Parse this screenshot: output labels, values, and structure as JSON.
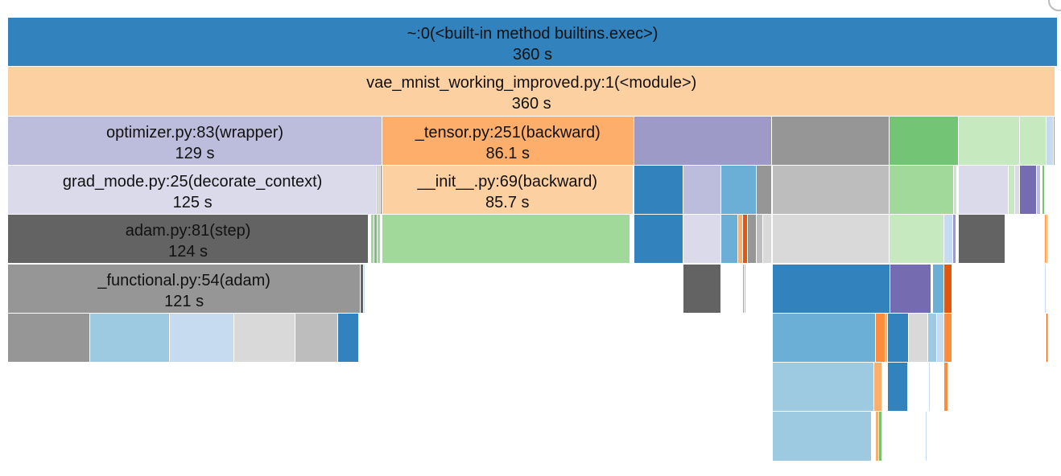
{
  "view": {
    "type": "icicle",
    "root_total_seconds": 360
  },
  "blocks": [
    {
      "name": "root-exec-frame",
      "row": 0,
      "x0": 0,
      "x1": 1,
      "color": "#3182bd",
      "label": "~:0(<built-in method builtins.exec>)",
      "time": "360 s"
    },
    {
      "name": "module-frame",
      "row": 1,
      "x0": 0,
      "x1": 0.998,
      "color": "#fdd0a2",
      "label": "vae_mnist_working_improved.py:1(<module>)",
      "time": "360 s"
    },
    {
      "name": "optimizer-wrapper-frame",
      "row": 2,
      "x0": 0,
      "x1": 0.3566,
      "color": "#bcbddc",
      "label": "optimizer.py:83(wrapper)",
      "time": "129 s"
    },
    {
      "name": "tensor-backward-frame",
      "row": 2,
      "x0": 0.3566,
      "x1": 0.5963,
      "color": "#fdae6b",
      "label": "_tensor.py:251(backward)",
      "time": "86.1 s"
    },
    {
      "name": "frame",
      "row": 2,
      "x0": 0.5963,
      "x1": 0.7279,
      "color": "#9e9ac8"
    },
    {
      "name": "frame",
      "row": 2,
      "x0": 0.7279,
      "x1": 0.8396,
      "color": "#969696"
    },
    {
      "name": "frame",
      "row": 2,
      "x0": 0.8396,
      "x1": 0.9059,
      "color": "#74c476"
    },
    {
      "name": "frame",
      "row": 2,
      "x0": 0.9059,
      "x1": 0.9636,
      "color": "#c7e9c0"
    },
    {
      "name": "frame",
      "row": 2,
      "x0": 0.9636,
      "x1": 0.9893,
      "color": "#c7e9c0"
    },
    {
      "name": "frame",
      "row": 2,
      "x0": 0.9893,
      "x1": 0.9965,
      "color": "#c6dbef"
    },
    {
      "name": "frame",
      "row": 2,
      "x0": 0.9965,
      "x1": 0.998,
      "color": "#6baed6"
    },
    {
      "name": "grad-mode-frame",
      "row": 3,
      "x0": 0,
      "x1": 0.3522,
      "color": "#dadaeb",
      "label": "grad_mode.py:25(decorate_context)",
      "time": "125 s"
    },
    {
      "name": "frame",
      "row": 3,
      "x0": 0.3522,
      "x1": 0.3536,
      "color": "#74c476"
    },
    {
      "name": "frame",
      "row": 3,
      "x0": 0.3536,
      "x1": 0.3551,
      "color": "#a1d99b"
    },
    {
      "name": "frame",
      "row": 3,
      "x0": 0.3551,
      "x1": 0.3566,
      "color": "#31a354"
    },
    {
      "name": "init-backward-frame",
      "row": 3,
      "x0": 0.3566,
      "x1": 0.5955,
      "color": "#fdd0a2",
      "label": "__init__.py:69(backward)",
      "time": "85.7 s"
    },
    {
      "name": "frame",
      "row": 3,
      "x0": 0.5963,
      "x1": 0.6436,
      "color": "#3182bd"
    },
    {
      "name": "frame",
      "row": 3,
      "x0": 0.6436,
      "x1": 0.6795,
      "color": "#bcbddc"
    },
    {
      "name": "frame",
      "row": 3,
      "x0": 0.6795,
      "x1": 0.7131,
      "color": "#6baed6"
    },
    {
      "name": "frame",
      "row": 3,
      "x0": 0.7131,
      "x1": 0.7275,
      "color": "#969696"
    },
    {
      "name": "frame",
      "row": 3,
      "x0": 0.7283,
      "x1": 0.8396,
      "color": "#bdbdbd"
    },
    {
      "name": "frame",
      "row": 3,
      "x0": 0.8396,
      "x1": 0.9013,
      "color": "#a1d99b"
    },
    {
      "name": "frame",
      "row": 3,
      "x0": 0.9013,
      "x1": 0.9044,
      "color": "#c7e9c0"
    },
    {
      "name": "frame",
      "row": 3,
      "x0": 0.9059,
      "x1": 0.9529,
      "color": "#dadaeb"
    },
    {
      "name": "frame",
      "row": 3,
      "x0": 0.9529,
      "x1": 0.959,
      "color": "#c7e9c0"
    },
    {
      "name": "frame",
      "row": 3,
      "x0": 0.959,
      "x1": 0.9636,
      "color": "#dadaeb"
    },
    {
      "name": "frame",
      "row": 3,
      "x0": 0.9636,
      "x1": 0.9803,
      "color": "#756bb1"
    },
    {
      "name": "frame",
      "row": 3,
      "x0": 0.9803,
      "x1": 0.9841,
      "color": "#bcbddc"
    },
    {
      "name": "frame",
      "row": 3,
      "x0": 0.9856,
      "x1": 0.988,
      "color": "#74c476"
    },
    {
      "name": "adam-step-frame",
      "row": 4,
      "x0": 0,
      "x1": 0.3437,
      "color": "#636363",
      "label": "adam.py:81(step)",
      "time": "124 s"
    },
    {
      "name": "frame",
      "row": 4,
      "x0": 0.3437,
      "x1": 0.346,
      "color": "#ffffff"
    },
    {
      "name": "frame",
      "row": 4,
      "x0": 0.346,
      "x1": 0.349,
      "color": "#a1d99b"
    },
    {
      "name": "frame",
      "row": 4,
      "x0": 0.349,
      "x1": 0.3521,
      "color": "#74c476"
    },
    {
      "name": "frame",
      "row": 4,
      "x0": 0.3521,
      "x1": 0.3552,
      "color": "#a1d99b"
    },
    {
      "name": "frame",
      "row": 4,
      "x0": 0.3566,
      "x1": 0.5925,
      "color": "#a1d99b"
    },
    {
      "name": "frame",
      "row": 4,
      "x0": 0.5963,
      "x1": 0.6436,
      "color": "#3182bd"
    },
    {
      "name": "frame",
      "row": 4,
      "x0": 0.6436,
      "x1": 0.6795,
      "color": "#dadaeb"
    },
    {
      "name": "frame",
      "row": 4,
      "x0": 0.6795,
      "x1": 0.6955,
      "color": "#6baed6"
    },
    {
      "name": "frame",
      "row": 4,
      "x0": 0.6955,
      "x1": 0.7001,
      "color": "#fdae6b"
    },
    {
      "name": "frame",
      "row": 4,
      "x0": 0.7001,
      "x1": 0.7047,
      "color": "#e6550d"
    },
    {
      "name": "frame",
      "row": 4,
      "x0": 0.7047,
      "x1": 0.7131,
      "color": "#969696"
    },
    {
      "name": "frame",
      "row": 4,
      "x0": 0.7131,
      "x1": 0.7192,
      "color": "#bdbdbd"
    },
    {
      "name": "frame",
      "row": 4,
      "x0": 0.7192,
      "x1": 0.7275,
      "color": "#d9d9d9"
    },
    {
      "name": "frame",
      "row": 4,
      "x0": 0.7283,
      "x1": 0.8396,
      "color": "#d9d9d9"
    },
    {
      "name": "frame",
      "row": 4,
      "x0": 0.8396,
      "x1": 0.8922,
      "color": "#c7e9c0"
    },
    {
      "name": "frame",
      "row": 4,
      "x0": 0.8922,
      "x1": 0.9006,
      "color": "#c6dbef"
    },
    {
      "name": "frame",
      "row": 4,
      "x0": 0.9006,
      "x1": 0.9036,
      "color": "#9e9ac8"
    },
    {
      "name": "frame",
      "row": 4,
      "x0": 0.9059,
      "x1": 0.9499,
      "color": "#636363"
    },
    {
      "name": "frame",
      "row": 4,
      "x0": 0.9879,
      "x1": 0.9894,
      "color": "#fd8d3c"
    },
    {
      "name": "frame",
      "row": 4,
      "x0": 0.9894,
      "x1": 0.9902,
      "color": "#fdae6b"
    },
    {
      "name": "functional-adam-frame",
      "row": 5,
      "x0": 0,
      "x1": 0.3361,
      "color": "#969696",
      "label": "_functional.py:54(adam)",
      "time": "121 s"
    },
    {
      "name": "frame",
      "row": 5,
      "x0": 0.3361,
      "x1": 0.3391,
      "color": "#636363"
    },
    {
      "name": "frame",
      "row": 5,
      "x0": 0.3391,
      "x1": 0.3407,
      "color": "#c6dbef"
    },
    {
      "name": "frame",
      "row": 5,
      "x0": 0.6436,
      "x1": 0.6795,
      "color": "#636363"
    },
    {
      "name": "frame",
      "row": 5,
      "x0": 0.7001,
      "x1": 0.7016,
      "color": "#fd8d3c"
    },
    {
      "name": "frame",
      "row": 5,
      "x0": 0.7016,
      "x1": 0.7031,
      "color": "#fdae6b"
    },
    {
      "name": "frame",
      "row": 5,
      "x0": 0.7283,
      "x1": 0.8404,
      "color": "#3182bd"
    },
    {
      "name": "frame",
      "row": 5,
      "x0": 0.8404,
      "x1": 0.8799,
      "color": "#756bb1"
    },
    {
      "name": "frame",
      "row": 5,
      "x0": 0.8814,
      "x1": 0.8922,
      "color": "#6baed6"
    },
    {
      "name": "frame",
      "row": 5,
      "x0": 0.8922,
      "x1": 0.8999,
      "color": "#e6550d"
    },
    {
      "name": "frame",
      "row": 5,
      "x0": 0.988,
      "x1": 0.9894,
      "color": "#c6dbef"
    },
    {
      "name": "frame",
      "row": 6,
      "x0": 0,
      "x1": 0.078,
      "color": "#969696"
    },
    {
      "name": "frame",
      "row": 6,
      "x0": 0.078,
      "x1": 0.1541,
      "color": "#9ecae1"
    },
    {
      "name": "frame",
      "row": 6,
      "x0": 0.1541,
      "x1": 0.2157,
      "color": "#c6dbef"
    },
    {
      "name": "frame",
      "row": 6,
      "x0": 0.2157,
      "x1": 0.2735,
      "color": "#d9d9d9"
    },
    {
      "name": "frame",
      "row": 6,
      "x0": 0.2735,
      "x1": 0.3148,
      "color": "#bdbdbd"
    },
    {
      "name": "frame",
      "row": 6,
      "x0": 0.3148,
      "x1": 0.3346,
      "color": "#3182bd"
    },
    {
      "name": "frame",
      "row": 6,
      "x0": 0.7283,
      "x1": 0.8267,
      "color": "#6baed6"
    },
    {
      "name": "frame",
      "row": 6,
      "x0": 0.8267,
      "x1": 0.8358,
      "color": "#fd8d3c"
    },
    {
      "name": "frame",
      "row": 6,
      "x0": 0.8358,
      "x1": 0.8381,
      "color": "#fdae6b"
    },
    {
      "name": "frame",
      "row": 6,
      "x0": 0.8381,
      "x1": 0.858,
      "color": "#3182bd"
    },
    {
      "name": "frame",
      "row": 6,
      "x0": 0.858,
      "x1": 0.8769,
      "color": "#d9d9d9"
    },
    {
      "name": "frame",
      "row": 6,
      "x0": 0.8769,
      "x1": 0.8853,
      "color": "#9ecae1"
    },
    {
      "name": "frame",
      "row": 6,
      "x0": 0.8853,
      "x1": 0.8922,
      "color": "#c6dbef"
    },
    {
      "name": "frame",
      "row": 6,
      "x0": 0.8922,
      "x1": 0.8999,
      "color": "#fd8d3c"
    },
    {
      "name": "frame",
      "row": 6,
      "x0": 0.9894,
      "x1": 0.9902,
      "color": "#e6550d"
    },
    {
      "name": "frame",
      "row": 7,
      "x0": 0.7283,
      "x1": 0.8252,
      "color": "#9ecae1"
    },
    {
      "name": "frame",
      "row": 7,
      "x0": 0.8252,
      "x1": 0.8328,
      "color": "#fdae6b"
    },
    {
      "name": "frame",
      "row": 7,
      "x0": 0.8381,
      "x1": 0.8572,
      "color": "#3182bd"
    },
    {
      "name": "frame",
      "row": 7,
      "x0": 0.877,
      "x1": 0.8785,
      "color": "#c6dbef"
    },
    {
      "name": "frame",
      "row": 7,
      "x0": 0.8922,
      "x1": 0.896,
      "color": "#fd8d3c"
    },
    {
      "name": "frame",
      "row": 8,
      "x0": 0.7283,
      "x1": 0.8229,
      "color": "#9ecae1"
    },
    {
      "name": "frame",
      "row": 8,
      "x0": 0.8267,
      "x1": 0.8297,
      "color": "#fdae6b"
    },
    {
      "name": "frame",
      "row": 8,
      "x0": 0.8297,
      "x1": 0.8328,
      "color": "#74c476"
    },
    {
      "name": "frame",
      "row": 8,
      "x0": 0.8739,
      "x1": 0.8755,
      "color": "#c6dbef"
    }
  ]
}
